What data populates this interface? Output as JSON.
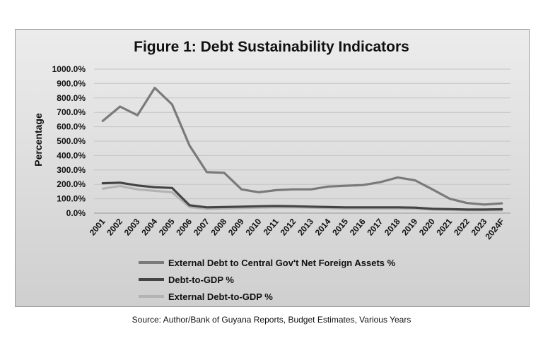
{
  "chart_data": {
    "type": "line",
    "title": "Figure 1: Debt Sustainability Indicators",
    "ylabel": "Percentage",
    "xlabel": "",
    "ylim": [
      0,
      1000
    ],
    "yticks": [
      0,
      100,
      200,
      300,
      400,
      500,
      600,
      700,
      800,
      900,
      1000
    ],
    "ytick_labels": [
      "0.0%",
      "100.0%",
      "200.0%",
      "300.0%",
      "400.0%",
      "500.0%",
      "600.0%",
      "700.0%",
      "800.0%",
      "900.0%",
      "1000.0%"
    ],
    "grid": true,
    "legend_position": "bottom",
    "categories": [
      "2001",
      "2002",
      "2003",
      "2004",
      "2005",
      "2006",
      "2007",
      "2008",
      "2009",
      "2010",
      "2011",
      "2012",
      "2013",
      "2014",
      "2015",
      "2016",
      "2017",
      "2018",
      "2019",
      "2020",
      "2021",
      "2022",
      "2023",
      "2024F"
    ],
    "series": [
      {
        "name": "External Debt to Central Gov't Net Foreign Assets %",
        "color": "#7a7a7a",
        "values": [
          640,
          740,
          680,
          870,
          755,
          470,
          285,
          280,
          165,
          145,
          160,
          165,
          165,
          185,
          190,
          195,
          215,
          248,
          228,
          165,
          100,
          70,
          60,
          68
        ]
      },
      {
        "name": "Debt-to-GDP %",
        "color": "#444444",
        "values": [
          208,
          212,
          192,
          180,
          175,
          55,
          40,
          42,
          45,
          48,
          50,
          48,
          45,
          42,
          40,
          40,
          40,
          40,
          38,
          30,
          28,
          25,
          25,
          27
        ]
      },
      {
        "name": "External Debt-to-GDP %",
        "color": "#b3b3b3",
        "values": [
          170,
          188,
          165,
          155,
          145,
          42,
          30,
          32,
          35,
          38,
          40,
          40,
          38,
          35,
          32,
          32,
          32,
          32,
          30,
          25,
          22,
          20,
          20,
          20
        ]
      }
    ],
    "source": "Source: Author/Bank of Guyana Reports, Budget Estimates, Various Years"
  }
}
